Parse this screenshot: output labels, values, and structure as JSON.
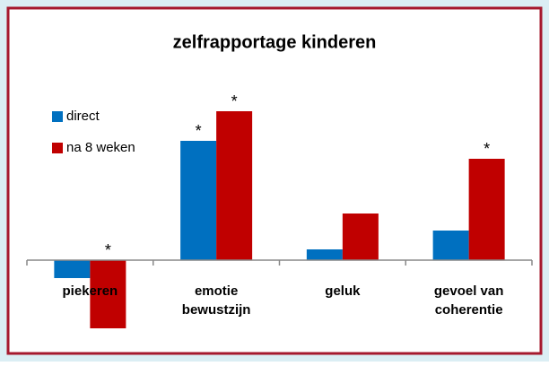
{
  "chart_data": {
    "type": "bar",
    "title": "zelfrapportage kinderen",
    "categories": [
      [
        "piekeren"
      ],
      [
        "emotie",
        "bewustzijn"
      ],
      [
        "geluk"
      ],
      [
        "gevoel van",
        "coherentie"
      ]
    ],
    "series": [
      {
        "name": "direct",
        "color": "#0070c0",
        "values": [
          -0.2,
          1.33,
          0.12,
          0.33
        ],
        "significance": [
          null,
          "*",
          null,
          null
        ]
      },
      {
        "name": "na 8 weken",
        "color": "#c00000",
        "values": [
          -0.76,
          1.66,
          0.52,
          1.13
        ],
        "significance": [
          "*",
          "*",
          null,
          "*"
        ]
      }
    ],
    "ylim": [
      -0.9,
      1.9
    ],
    "legend": "left"
  }
}
